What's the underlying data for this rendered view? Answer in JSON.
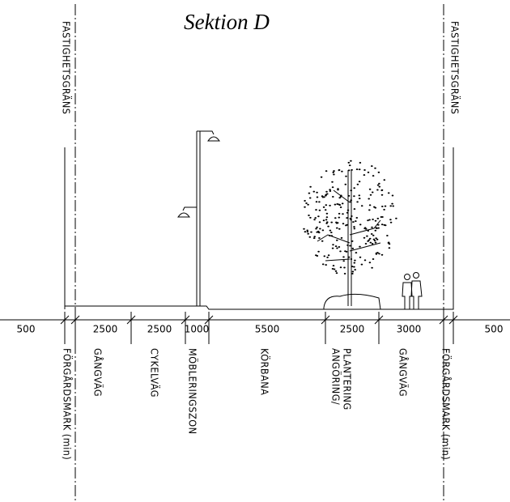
{
  "title": "Sektion D",
  "property_lines": [
    "FASTIGHETSGRÄNS",
    "FASTIGHETSGRÄNS"
  ],
  "dimensions": [
    500,
    2500,
    2500,
    1000,
    5500,
    2500,
    3000,
    500
  ],
  "zones": [
    "FÖRGÅRDSMARK (min)",
    "GÅNGVÄG",
    "CYKELVÄG",
    "MÖBLERINGSZON",
    "KÖRBANA",
    {
      "lines": [
        "ANGÖRING/",
        "PLANTERING"
      ]
    },
    "GÅNGVÄG",
    "FÖRGÅRDSMARK (min)"
  ]
}
